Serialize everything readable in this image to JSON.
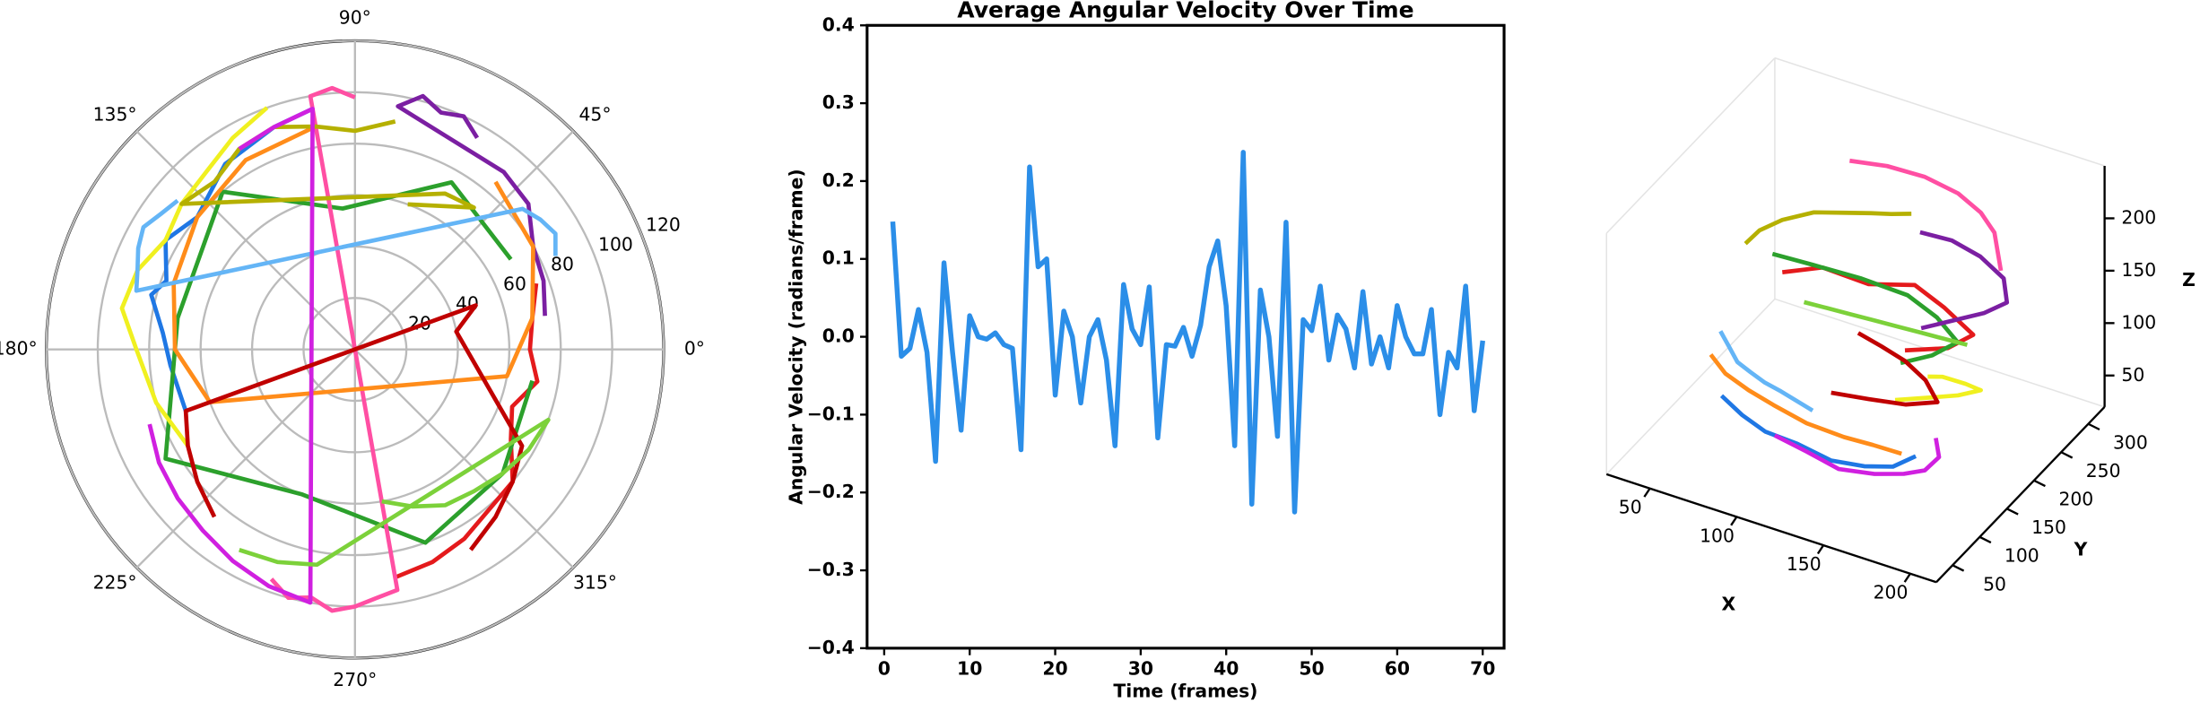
{
  "chart_data": [
    {
      "type": "polar",
      "rlim": [
        0,
        120
      ],
      "rticks": [
        20,
        40,
        60,
        80,
        100,
        120
      ],
      "grid": true,
      "thetaticks": [
        {
          "value": 0,
          "label": "0°"
        },
        {
          "value": 45,
          "label": "45°"
        },
        {
          "value": 90,
          "label": "90°"
        },
        {
          "value": 135,
          "label": "135°"
        },
        {
          "value": 180,
          "label": "180°"
        },
        {
          "value": 225,
          "label": "225°"
        },
        {
          "value": 270,
          "label": "270°"
        },
        {
          "value": 315,
          "label": "315°"
        }
      ],
      "series": [
        {
          "color": "#1f77e4",
          "theta": [
            100,
            110,
            125,
            140,
            150,
            160,
            165,
            175,
            185,
            200
          ],
          "r": [
            95,
            92,
            88,
            80,
            85,
            78,
            82,
            75,
            72,
            70
          ]
        },
        {
          "color": "#e41a1c",
          "theta": [
            20,
            10,
            0,
            350,
            340,
            330,
            320,
            300,
            290,
            280
          ],
          "r": [
            75,
            70,
            68,
            72,
            65,
            70,
            80,
            85,
            88,
            90
          ]
        },
        {
          "color": "#2ca02c",
          "theta": [
            30,
            60,
            95,
            130,
            170,
            210,
            250,
            290,
            320,
            350
          ],
          "r": [
            70,
            75,
            55,
            80,
            70,
            85,
            60,
            80,
            75,
            70
          ]
        },
        {
          "color": "#7b1fa2",
          "theta": [
            60,
            65,
            70,
            75,
            80,
            50,
            40,
            30,
            20,
            10
          ],
          "r": [
            95,
            100,
            98,
            102,
            96,
            90,
            88,
            80,
            78,
            75
          ]
        },
        {
          "color": "#ff4fa3",
          "theta": [
            250,
            255,
            260,
            265,
            270,
            275,
            280,
            100,
            95,
            90
          ],
          "r": [
            95,
            100,
            98,
            102,
            100,
            97,
            95,
            100,
            102,
            98
          ]
        },
        {
          "color": "#f0f020",
          "theta": [
            110,
            120,
            130,
            140,
            150,
            160,
            170,
            180,
            195,
            210
          ],
          "r": [
            100,
            95,
            90,
            88,
            85,
            90,
            92,
            85,
            80,
            75
          ]
        },
        {
          "color": "#ff8c1a",
          "theta": [
            50,
            30,
            10,
            350,
            200,
            180,
            160,
            140,
            120,
            100
          ],
          "r": [
            85,
            80,
            70,
            60,
            60,
            70,
            75,
            80,
            85,
            88
          ]
        },
        {
          "color": "#b5b000",
          "theta": [
            80,
            90,
            100,
            110,
            120,
            130,
            140,
            60,
            50,
            70
          ],
          "r": [
            90,
            85,
            88,
            92,
            90,
            85,
            88,
            70,
            72,
            60
          ]
        },
        {
          "color": "#64b5f6",
          "theta": [
            140,
            145,
            150,
            155,
            160,
            165,
            40,
            35,
            30,
            25
          ],
          "r": [
            90,
            92,
            95,
            93,
            90,
            88,
            85,
            88,
            90,
            86
          ]
        },
        {
          "color": "#d020e0",
          "theta": [
            200,
            210,
            220,
            230,
            240,
            250,
            260,
            100,
            110,
            120
          ],
          "r": [
            85,
            88,
            90,
            92,
            95,
            98,
            100,
            95,
            92,
            90
          ]
        },
        {
          "color": "#c00000",
          "theta": [
            300,
            310,
            320,
            330,
            10,
            20,
            200,
            210,
            220,
            230
          ],
          "r": [
            90,
            85,
            80,
            75,
            40,
            50,
            70,
            75,
            80,
            85
          ]
        },
        {
          "color": "#7cd13a",
          "theta": [
            280,
            290,
            300,
            310,
            320,
            330,
            340,
            260,
            250,
            240
          ],
          "r": [
            60,
            65,
            70,
            72,
            75,
            78,
            80,
            85,
            88,
            90
          ]
        }
      ]
    },
    {
      "type": "line",
      "title": "Average  Angular Velocity Over Time",
      "xlabel": "Time (frames)",
      "ylabel": "Angular Velocity (radians/frame)",
      "xlim": [
        -2,
        72.5
      ],
      "ylim": [
        -0.4,
        0.4
      ],
      "xticks": [
        0,
        10,
        20,
        30,
        40,
        50,
        60,
        70
      ],
      "yticks": [
        {
          "value": -0.4,
          "label": "−0.4"
        },
        {
          "value": -0.3,
          "label": "−0.3"
        },
        {
          "value": -0.2,
          "label": "−0.2"
        },
        {
          "value": -0.1,
          "label": "−0.1"
        },
        {
          "value": 0,
          "label": "0.0"
        },
        0.1,
        0.2,
        0.3,
        0.4
      ],
      "x": [
        1,
        2,
        3,
        4,
        5,
        6,
        7,
        8,
        9,
        10,
        11,
        12,
        13,
        14,
        15,
        16,
        17,
        18,
        19,
        20,
        21,
        22,
        23,
        24,
        25,
        26,
        27,
        28,
        29,
        30,
        31,
        32,
        33,
        34,
        35,
        36,
        37,
        38,
        39,
        40,
        41,
        42,
        43,
        44,
        45,
        46,
        47,
        48,
        49,
        50,
        51,
        52,
        53,
        54,
        55,
        56,
        57,
        58,
        59,
        60,
        61,
        62,
        63,
        64,
        65,
        66,
        67,
        68,
        69,
        70
      ],
      "series": [
        {
          "color": "#2b8ee8",
          "values": [
            0.148,
            -0.025,
            -0.015,
            0.035,
            -0.02,
            -0.16,
            0.095,
            -0.02,
            -0.12,
            0.027,
            0.0,
            -0.003,
            0.005,
            -0.01,
            -0.015,
            -0.145,
            0.218,
            0.09,
            0.1,
            -0.075,
            0.033,
            0.0,
            -0.085,
            0.0,
            0.022,
            -0.03,
            -0.14,
            0.067,
            0.01,
            -0.01,
            0.064,
            -0.13,
            -0.01,
            -0.012,
            0.012,
            -0.025,
            0.015,
            0.09,
            0.123,
            0.04,
            -0.14,
            0.237,
            -0.215,
            0.06,
            0.0,
            -0.128,
            0.147,
            -0.225,
            0.022,
            0.008,
            0.065,
            -0.03,
            0.028,
            0.01,
            -0.04,
            0.058,
            -0.035,
            0.0,
            -0.04,
            0.04,
            0.0,
            -0.022,
            -0.022,
            0.035,
            -0.1,
            -0.02,
            -0.04,
            0.065,
            -0.095,
            -0.005
          ]
        }
      ]
    },
    {
      "type": "line3d",
      "xlabel": "X",
      "ylabel": "Y",
      "zlabel": "Z",
      "xlim": [
        25,
        215
      ],
      "ylim": [
        20,
        330
      ],
      "zlim": [
        20,
        250
      ],
      "xticks": [
        50,
        100,
        150,
        200
      ],
      "yticks": [
        50,
        100,
        150,
        200,
        250,
        300
      ],
      "zticks": [
        50,
        100,
        150,
        200
      ],
      "series": [
        {
          "color": "#1f77e4",
          "x": [
            60,
            75,
            90,
            110,
            130,
            150,
            165,
            175
          ],
          "y": [
            120,
            110,
            105,
            100,
            98,
            95,
            100,
            110
          ],
          "z": [
            60,
            55,
            50,
            52,
            48,
            55,
            60,
            70
          ]
        },
        {
          "color": "#e41a1c",
          "x": [
            70,
            90,
            115,
            140,
            160,
            180,
            170,
            150
          ],
          "y": [
            200,
            210,
            215,
            220,
            210,
            200,
            185,
            170
          ],
          "z": [
            140,
            150,
            145,
            155,
            150,
            140,
            130,
            125
          ]
        },
        {
          "color": "#2ca02c",
          "x": [
            80,
            100,
            125,
            150,
            170,
            185,
            175,
            160
          ],
          "y": [
            150,
            160,
            170,
            175,
            165,
            155,
            140,
            130
          ],
          "z": [
            190,
            185,
            180,
            175,
            170,
            160,
            150,
            140
          ]
        },
        {
          "color": "#7b1fa2",
          "x": [
            140,
            155,
            170,
            185,
            190,
            180,
            165,
            150
          ],
          "y": [
            230,
            240,
            245,
            240,
            230,
            220,
            210,
            200
          ],
          "z": [
            200,
            195,
            185,
            175,
            160,
            150,
            140,
            130
          ]
        },
        {
          "color": "#ff4fa3",
          "x": [
            90,
            110,
            130,
            150,
            165,
            175,
            180,
            185
          ],
          "y": [
            260,
            265,
            270,
            268,
            262,
            255,
            245,
            235
          ],
          "z": [
            225,
            228,
            226,
            222,
            215,
            205,
            195,
            185
          ]
        },
        {
          "color": "#f0f020",
          "x": [
            160,
            175,
            190,
            200,
            195,
            185,
            170,
            160
          ],
          "y": [
            120,
            130,
            140,
            150,
            160,
            170,
            175,
            180
          ],
          "z": [
            110,
            115,
            120,
            125,
            118,
            112,
            108,
            100
          ]
        },
        {
          "color": "#ff8c1a",
          "x": [
            60,
            70,
            85,
            100,
            120,
            140,
            155,
            170
          ],
          "y": [
            100,
            95,
            90,
            88,
            85,
            90,
            95,
            100
          ],
          "z": [
            110,
            100,
            95,
            90,
            85,
            80,
            78,
            75
          ]
        },
        {
          "color": "#b5b000",
          "x": [
            55,
            60,
            70,
            85,
            100,
            115,
            125,
            135
          ],
          "y": [
            180,
            190,
            200,
            210,
            215,
            220,
            225,
            230
          ],
          "z": [
            170,
            180,
            190,
            200,
            205,
            210,
            212,
            215
          ]
        },
        {
          "color": "#64b5f6",
          "x": [
            50,
            58,
            66,
            75,
            85,
            95,
            105,
            115
          ],
          "y": [
            150,
            140,
            130,
            125,
            120,
            118,
            115,
            112
          ],
          "z": [
            100,
            95,
            90,
            88,
            86,
            84,
            82,
            80
          ]
        },
        {
          "color": "#d020e0",
          "x": [
            100,
            120,
            140,
            160,
            175,
            185,
            190,
            185
          ],
          "y": [
            90,
            85,
            80,
            82,
            88,
            95,
            105,
            115
          ],
          "z": [
            60,
            58,
            55,
            60,
            65,
            70,
            80,
            90
          ]
        },
        {
          "color": "#c00000",
          "x": [
            120,
            135,
            150,
            165,
            175,
            160,
            140,
            120
          ],
          "y": [
            180,
            175,
            170,
            160,
            150,
            140,
            135,
            130
          ],
          "z": [
            120,
            118,
            115,
            110,
            100,
            95,
            92,
            90
          ]
        },
        {
          "color": "#7cd13a",
          "x": [
            70,
            85,
            100,
            115,
            130,
            145,
            160,
            175
          ],
          "y": [
            240,
            235,
            230,
            225,
            220,
            215,
            210,
            205
          ],
          "z": [
            90,
            95,
            100,
            105,
            110,
            115,
            120,
            125
          ]
        }
      ]
    }
  ]
}
